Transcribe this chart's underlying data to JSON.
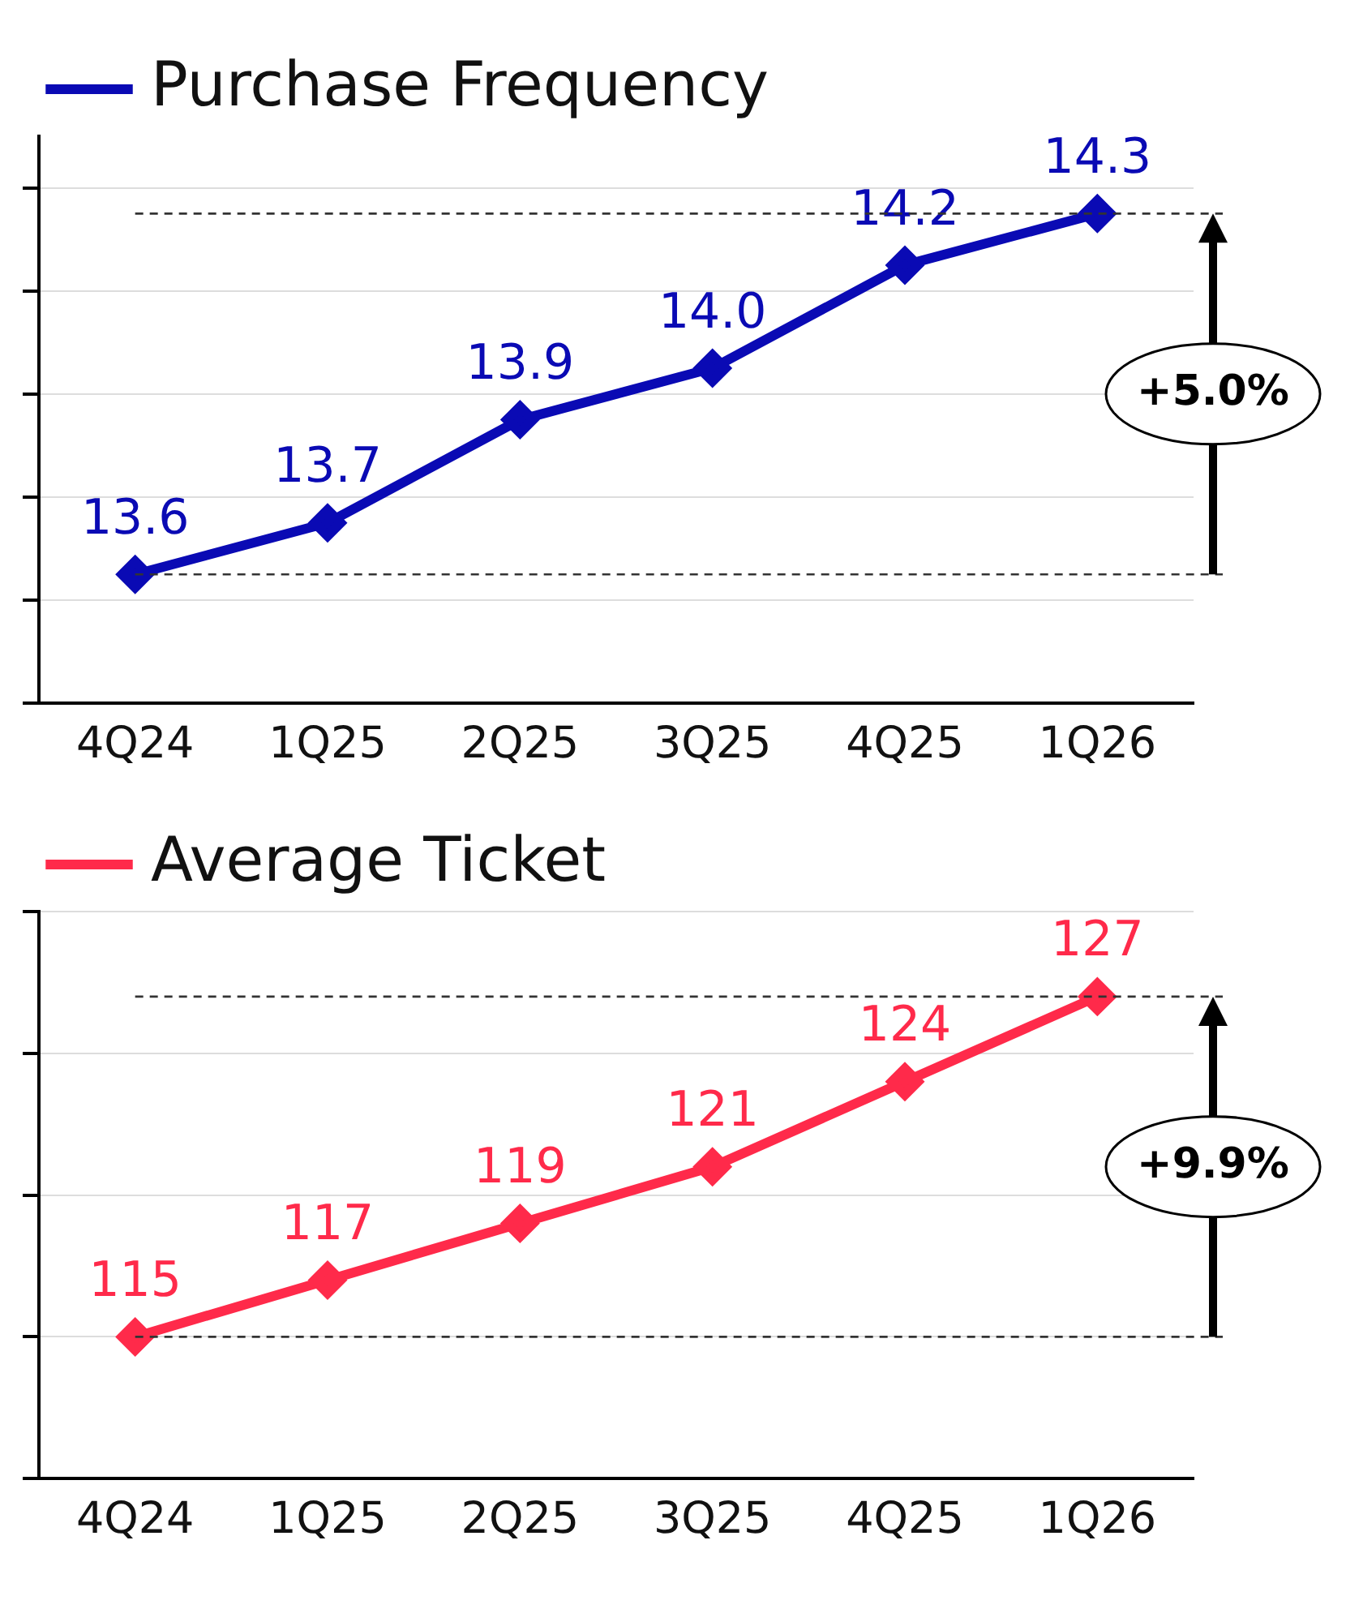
{
  "chart_data": [
    {
      "type": "line",
      "categories": [
        "4Q24",
        "1Q25",
        "2Q25",
        "3Q25",
        "4Q25",
        "1Q26"
      ],
      "series": [
        {
          "name": "Purchase Frequency",
          "color": "#0a0ab4",
          "values": [
            13.6,
            13.7,
            13.9,
            14.0,
            14.2,
            14.3
          ],
          "value_labels": [
            "13.6",
            "13.7",
            "13.9",
            "14.0",
            "14.2",
            "14.3"
          ]
        }
      ],
      "ylim": [
        13.35,
        14.45
      ],
      "yticks": [
        {
          "value": 13.35,
          "label": null
        },
        {
          "value": 13.55,
          "label": null
        },
        {
          "value": 13.75,
          "label": null
        },
        {
          "value": 13.95,
          "label": null
        },
        {
          "value": 14.15,
          "label": null
        },
        {
          "value": 14.35,
          "label": null
        }
      ],
      "tick_labels": "x",
      "grid": "y",
      "legend": "top left",
      "marker": "diamond",
      "line_style": "solid",
      "ref_lines": [
        {
          "axis": "y",
          "value": 13.6,
          "line_style": "dashed",
          "color": "#333333"
        },
        {
          "axis": "y",
          "value": 14.3,
          "line_style": "dashed",
          "color": "#333333"
        }
      ],
      "annotations": [
        "+5.0%"
      ]
    },
    {
      "type": "line",
      "categories": [
        "4Q24",
        "1Q25",
        "2Q25",
        "3Q25",
        "4Q25",
        "1Q26"
      ],
      "series": [
        {
          "name": "Average Ticket",
          "color": "#ff2a4a",
          "values": [
            115,
            117,
            119,
            121,
            124,
            127
          ]
        }
      ],
      "data_labels": true,
      "ylim": [
        110,
        130
      ],
      "yticks": [
        {
          "value": 110,
          "label": null
        },
        {
          "value": 115,
          "label": null
        },
        {
          "value": 120,
          "label": null
        },
        {
          "value": 125,
          "label": null
        },
        {
          "value": 130,
          "label": null
        }
      ],
      "tick_labels": "x",
      "grid": "y",
      "legend": "top left",
      "marker": "diamond",
      "line_style": "solid",
      "ref_lines": [
        {
          "axis": "y",
          "value": 115,
          "line_style": "dashed",
          "color": "#333333"
        },
        {
          "axis": "y",
          "value": 127,
          "line_style": "dashed",
          "color": "#333333"
        }
      ],
      "annotations": [
        "+9.9%"
      ]
    }
  ]
}
